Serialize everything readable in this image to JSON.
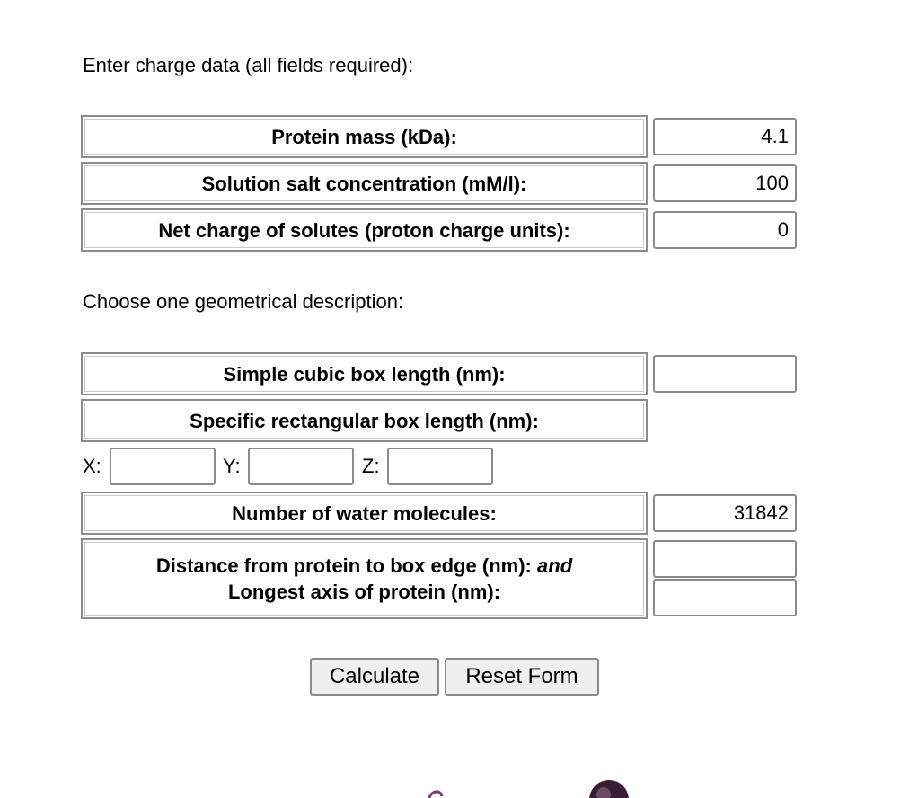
{
  "charge_section": {
    "heading": "Enter charge data (all fields required):",
    "fields": [
      {
        "label": "Protein mass (kDa):",
        "value": "4.1"
      },
      {
        "label": "Solution salt concentration (mM/l):",
        "value": "100"
      },
      {
        "label": "Net charge of solutes (proton charge units):",
        "value": "0"
      }
    ]
  },
  "geometry_section": {
    "heading": "Choose one geometrical description:",
    "cubic_label": "Simple cubic box length (nm):",
    "cubic_value": "",
    "rect_label": "Specific rectangular box length (nm):",
    "x_label": "X:",
    "y_label": "Y:",
    "z_label": "Z:",
    "x_value": "",
    "y_value": "",
    "z_value": "",
    "water_label": "Number of water molecules:",
    "water_value": "31842",
    "distance_label_part1": "Distance from protein to box edge (nm):",
    "distance_label_and": "and",
    "distance_label_part2": "Longest axis of protein (nm):",
    "distance_value": "",
    "longest_axis_value": ""
  },
  "buttons": {
    "calculate": "Calculate",
    "reset": "Reset Form"
  },
  "colors": {
    "border": "#8c8c8c",
    "button_bg": "#efefef",
    "logo_purple": "#7a3f6e"
  }
}
